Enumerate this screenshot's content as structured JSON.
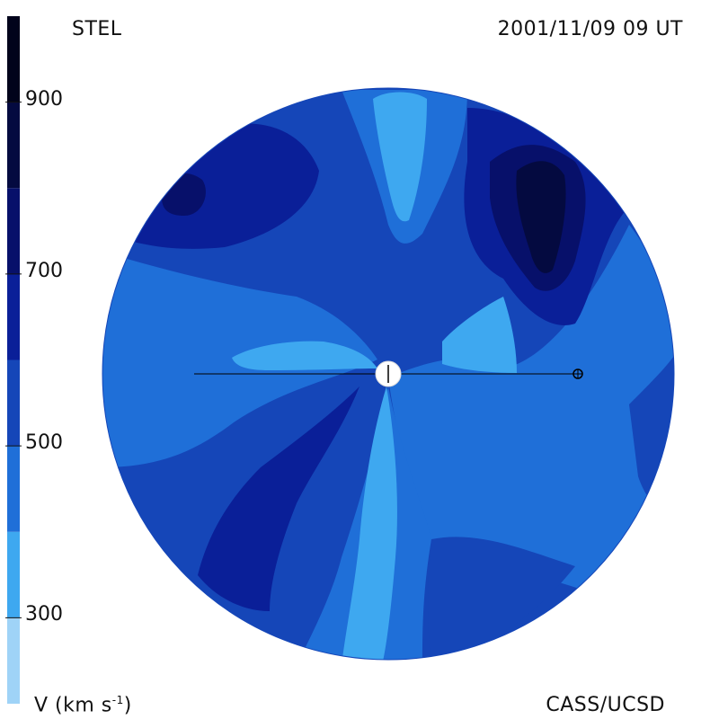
{
  "header": {
    "left_title": "STEL",
    "right_title": "2001/11/09 09 UT"
  },
  "footer": {
    "colorbar_label_prefix": "V (km s",
    "colorbar_label_sup": "-1",
    "colorbar_label_suffix": ")",
    "credit": "CASS/UCSD"
  },
  "chart_data": {
    "type": "heatmap",
    "title": "",
    "colorbar": {
      "label": "V (km s-1)",
      "ticks": [
        300,
        500,
        700,
        900
      ],
      "tick_labels": [
        "300",
        "500",
        "700",
        "900"
      ],
      "range": [
        200,
        1000
      ],
      "levels": [
        {
          "min": 200,
          "max": 300,
          "color": "#9fd3f7"
        },
        {
          "min": 300,
          "max": 400,
          "color": "#3ea8f0"
        },
        {
          "min": 400,
          "max": 500,
          "color": "#1f6fd8"
        },
        {
          "min": 500,
          "max": 600,
          "color": "#1546b8"
        },
        {
          "min": 600,
          "max": 700,
          "color": "#0a1f98"
        },
        {
          "min": 700,
          "max": 800,
          "color": "#07106a"
        },
        {
          "min": 800,
          "max": 900,
          "color": "#040a40"
        },
        {
          "min": 900,
          "max": 1000,
          "color": "#01031b"
        }
      ]
    },
    "regions": [
      {
        "name": "background",
        "level": 500
      },
      {
        "name": "north-lobe",
        "level": 550
      },
      {
        "name": "upper-left-dark",
        "level": 650
      },
      {
        "name": "upper-left-core",
        "level": 750
      },
      {
        "name": "upper-right-dark",
        "level": 650
      },
      {
        "name": "upper-right-core",
        "level": 750
      },
      {
        "name": "upper-right-peak",
        "level": 850
      },
      {
        "name": "north-stream",
        "level": 350
      },
      {
        "name": "west-light",
        "level": 450
      },
      {
        "name": "west-inner",
        "level": 350
      },
      {
        "name": "east-inner",
        "level": 350
      },
      {
        "name": "south-stream",
        "level": 350
      },
      {
        "name": "southwest-dark",
        "level": 650
      },
      {
        "name": "southwest-mid",
        "level": 550
      },
      {
        "name": "south-mid",
        "level": 550
      },
      {
        "name": "southeast-mid",
        "level": 550
      },
      {
        "name": "east-edge",
        "level": 550
      }
    ],
    "markers": [
      {
        "name": "sun",
        "symbol": "circle"
      },
      {
        "name": "earth",
        "symbol": "⊕"
      }
    ]
  }
}
